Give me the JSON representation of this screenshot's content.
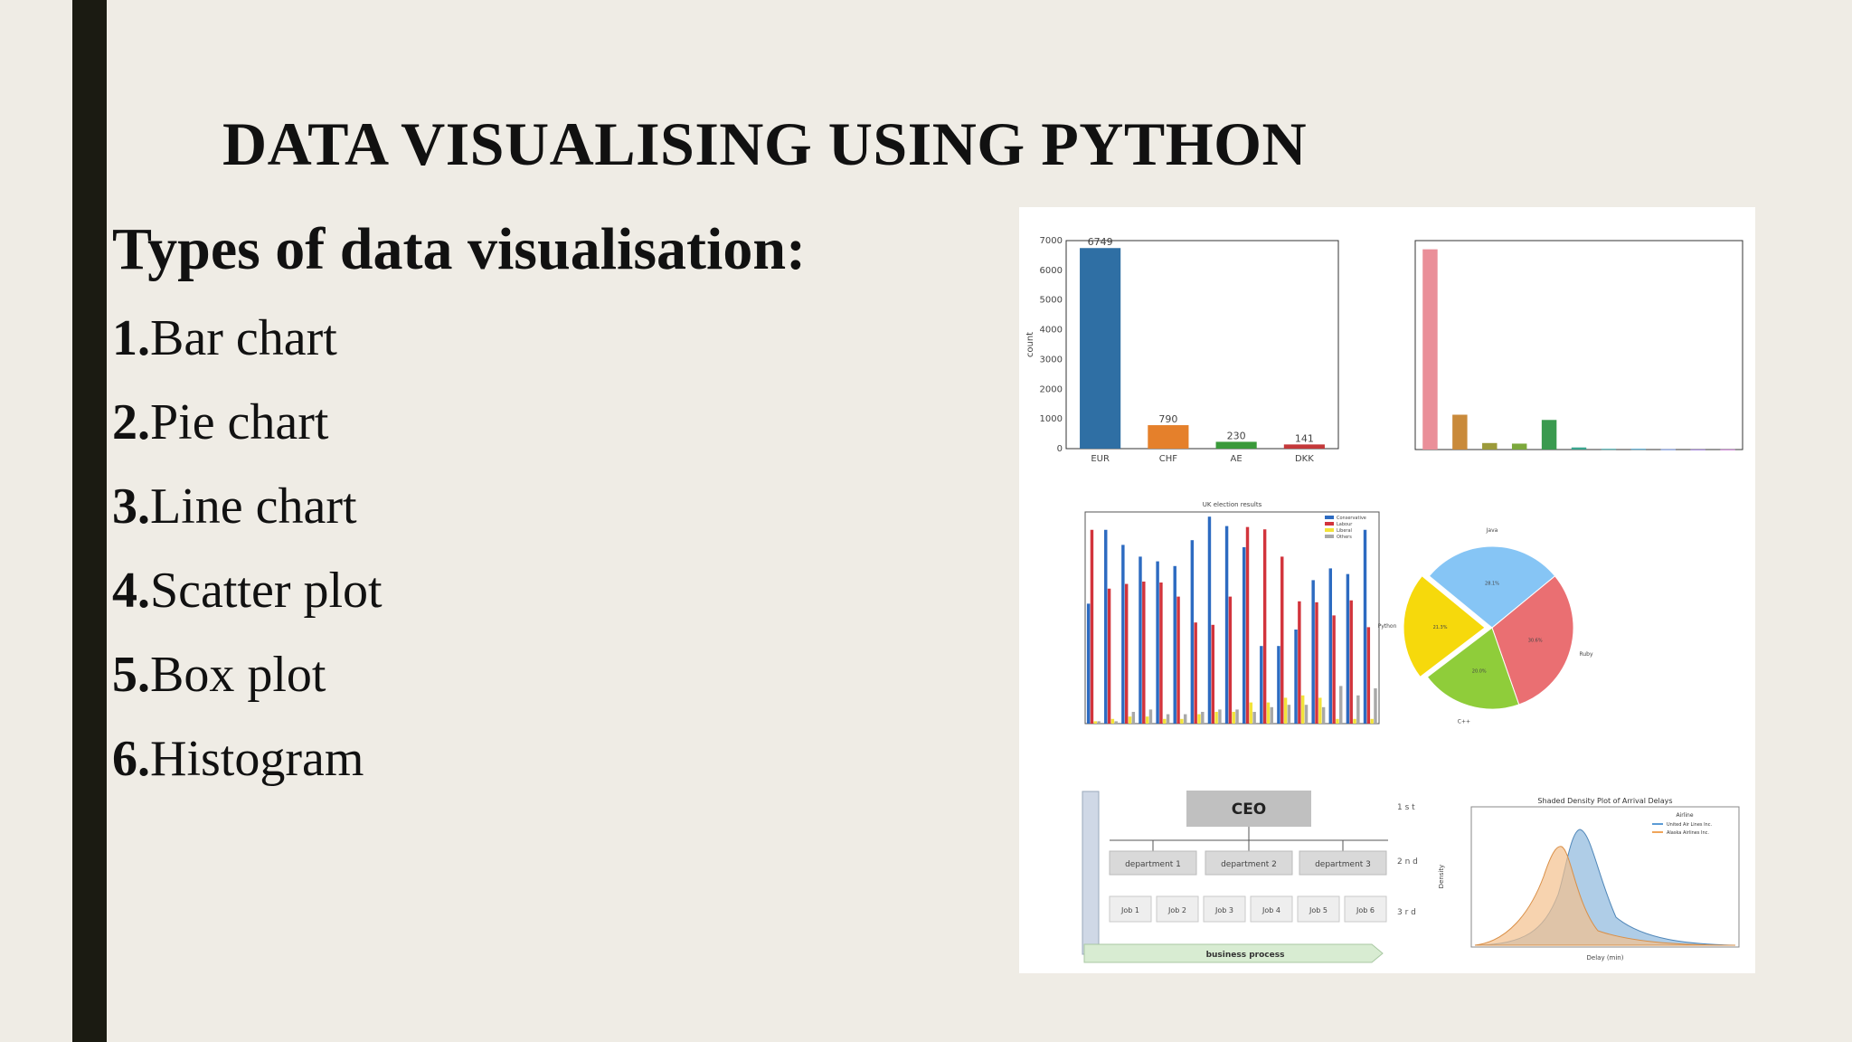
{
  "slide": {
    "title": "DATA VISUALISING USING PYTHON",
    "subtitle": "Types of data visualisation:",
    "items": [
      {
        "num": "1.",
        "label": "Bar chart"
      },
      {
        "num": "2.",
        "label": "Pie chart"
      },
      {
        "num": "3.",
        "label": "Line chart"
      },
      {
        "num": "4.",
        "label": "Scatter plot"
      },
      {
        "num": "5.",
        "label": "Box plot"
      },
      {
        "num": "6.",
        "label": "Histogram"
      }
    ]
  },
  "colors": {
    "sidebar": "#1b1b12",
    "background": "#efece5",
    "bar_blue": "#2f6fa4",
    "bar_orange": "#e5802b",
    "bar_green": "#3a9a3a",
    "bar_red": "#c4383a",
    "pink": "#ea8f99"
  },
  "chart_data": [
    {
      "type": "bar",
      "categories": [
        "EUR",
        "CHF",
        "AE",
        "DKK"
      ],
      "values": [
        6749,
        790,
        230,
        141
      ],
      "ylabel": "count",
      "ylim": [
        0,
        7000
      ],
      "yticks": [
        0,
        1000,
        2000,
        3000,
        4000,
        5000,
        6000,
        7000
      ]
    },
    {
      "type": "bar",
      "values": [
        5750,
        1000,
        187,
        170,
        850,
        60,
        20,
        20,
        10,
        5,
        5
      ]
    },
    {
      "type": "bar",
      "title": "UK election results",
      "series": [
        {
          "name": "Conservative",
          "values": [
            255,
            412,
            380,
            355,
            345,
            335,
            390,
            440,
            420,
            375,
            165,
            165,
            200,
            305,
            330,
            318,
            412
          ]
        },
        {
          "name": "Labour",
          "values": [
            412,
            287,
            297,
            302,
            300,
            270,
            215,
            210,
            270,
            418,
            413,
            355,
            260,
            258,
            230,
            262,
            205
          ]
        },
        {
          "name": "Liberal",
          "values": [
            5,
            10,
            15,
            15,
            10,
            10,
            20,
            25,
            25,
            45,
            45,
            55,
            60,
            55,
            10,
            10,
            10
          ]
        },
        {
          "name": "Others",
          "values": [
            5,
            5,
            25,
            30,
            20,
            20,
            25,
            30,
            30,
            25,
            35,
            40,
            40,
            35,
            80,
            60,
            75
          ]
        }
      ]
    },
    {
      "type": "pie",
      "labels": [
        "Java",
        "Ruby",
        "C++",
        "Python"
      ],
      "values": [
        28.1,
        30.6,
        20.0,
        21.3
      ]
    },
    {
      "type": "area",
      "title": "Shaded Density Plot of Arrival Delays",
      "xlabel": "Delay (min)",
      "ylabel": "Density",
      "legend_title": "Airline",
      "series": [
        {
          "name": "United Air Lines Inc.",
          "color": "#5b9bd5"
        },
        {
          "name": "Alaska Airlines Inc.",
          "color": "#f0a45a"
        }
      ]
    }
  ],
  "org_chart": {
    "root": "CEO",
    "departments": [
      "department 1",
      "department 2",
      "department 3"
    ],
    "jobs": [
      "Job 1",
      "Job 2",
      "Job 3",
      "Job 4",
      "Job 5",
      "Job 6"
    ],
    "process": "business process"
  }
}
